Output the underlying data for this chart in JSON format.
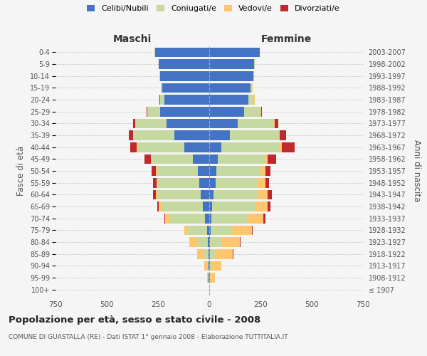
{
  "age_groups": [
    "100+",
    "95-99",
    "90-94",
    "85-89",
    "80-84",
    "75-79",
    "70-74",
    "65-69",
    "60-64",
    "55-59",
    "50-54",
    "45-49",
    "40-44",
    "35-39",
    "30-34",
    "25-29",
    "20-24",
    "15-19",
    "10-14",
    "5-9",
    "0-4"
  ],
  "birth_years": [
    "≤ 1907",
    "1908-1912",
    "1913-1917",
    "1918-1922",
    "1923-1927",
    "1928-1932",
    "1933-1937",
    "1938-1942",
    "1943-1947",
    "1948-1952",
    "1953-1957",
    "1958-1962",
    "1963-1967",
    "1968-1972",
    "1973-1977",
    "1978-1982",
    "1983-1987",
    "1988-1992",
    "1993-1997",
    "1998-2002",
    "2003-2007"
  ],
  "colors": {
    "celibi": "#4472c4",
    "coniugati": "#c5d9a0",
    "vedovi": "#ffc66e",
    "divorziati": "#c0282c"
  },
  "maschi": {
    "celibi": [
      0,
      2,
      3,
      5,
      8,
      10,
      20,
      30,
      40,
      50,
      55,
      80,
      120,
      170,
      210,
      240,
      220,
      230,
      240,
      245,
      265
    ],
    "coniugati": [
      0,
      3,
      8,
      20,
      50,
      95,
      170,
      200,
      210,
      200,
      200,
      200,
      230,
      200,
      150,
      60,
      20,
      5,
      2,
      2,
      2
    ],
    "vedovi": [
      0,
      5,
      15,
      35,
      40,
      15,
      25,
      15,
      10,
      8,
      5,
      5,
      5,
      3,
      2,
      1,
      1,
      1,
      0,
      0,
      0
    ],
    "divorziati": [
      0,
      0,
      0,
      0,
      0,
      2,
      5,
      10,
      15,
      15,
      20,
      30,
      30,
      20,
      10,
      3,
      2,
      1,
      0,
      0,
      0
    ]
  },
  "femmine": {
    "celibi": [
      0,
      2,
      3,
      5,
      5,
      8,
      10,
      15,
      20,
      30,
      35,
      40,
      60,
      100,
      140,
      170,
      190,
      200,
      215,
      220,
      245
    ],
    "coniugati": [
      0,
      5,
      10,
      25,
      55,
      100,
      175,
      210,
      220,
      205,
      215,
      230,
      285,
      240,
      175,
      80,
      30,
      10,
      5,
      3,
      2
    ],
    "vedovi": [
      2,
      20,
      45,
      85,
      90,
      100,
      80,
      60,
      45,
      40,
      25,
      15,
      10,
      5,
      3,
      2,
      1,
      1,
      0,
      0,
      0
    ],
    "divorziati": [
      0,
      0,
      0,
      2,
      2,
      5,
      8,
      15,
      20,
      15,
      25,
      40,
      60,
      30,
      20,
      5,
      2,
      1,
      0,
      0,
      0
    ]
  },
  "xlim": 750,
  "title": "Popolazione per età, sesso e stato civile - 2008",
  "subtitle": "COMUNE DI GUASTALLA (RE) - Dati ISTAT 1° gennaio 2008 - Elaborazione TUTTITALIA.IT",
  "ylabel_left": "Fasce di età",
  "ylabel_right": "Anni di nascita",
  "xlabel_left": "Maschi",
  "xlabel_right": "Femmine",
  "legend_labels": [
    "Celibi/Nubili",
    "Coniugati/e",
    "Vedovi/e",
    "Divorziati/e"
  ],
  "background_color": "#f5f5f5"
}
